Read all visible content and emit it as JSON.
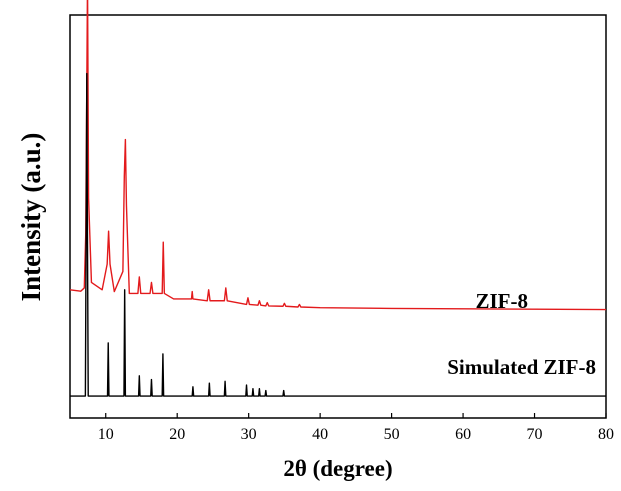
{
  "chart_data": {
    "type": "line",
    "xlabel": "2θ (degree)",
    "ylabel": "Intensity (a.u.)",
    "xlim": [
      5,
      80
    ],
    "xticks": [
      10,
      20,
      30,
      40,
      50,
      60,
      70,
      80
    ],
    "ytick_labels": false,
    "grid": false,
    "legend": "none",
    "series": [
      {
        "name": "ZIF-8",
        "color": "#e31a1c",
        "baseline": 14,
        "x": [
          5,
          6.5,
          7.0,
          7.2,
          7.35,
          7.45,
          7.6,
          8.0,
          9.5,
          10.2,
          10.4,
          10.6,
          11.2,
          12.4,
          12.6,
          12.75,
          12.9,
          13.3,
          14.5,
          14.7,
          14.9,
          16.2,
          16.4,
          16.6,
          17.9,
          18.05,
          18.2,
          19.5,
          22.0,
          22.1,
          22.2,
          24.2,
          24.4,
          24.6,
          26.6,
          26.8,
          27.0,
          29.7,
          29.9,
          30.1,
          31.3,
          31.5,
          31.7,
          32.4,
          32.6,
          32.8,
          34.8,
          35.0,
          35.2,
          36.9,
          37.1,
          37.3,
          40,
          50,
          60,
          70,
          80
        ],
        "y": [
          15,
          14.6,
          15.5,
          30,
          70,
          100,
          40,
          17,
          15,
          22,
          31,
          22,
          14.5,
          20,
          46,
          56,
          38,
          14,
          14,
          18.5,
          14,
          14,
          17,
          14,
          14,
          28,
          14,
          12.5,
          12.5,
          14.5,
          12.5,
          12,
          15,
          12,
          12,
          15.5,
          12,
          11,
          12.8,
          11,
          10.8,
          12,
          10.8,
          10.6,
          11.5,
          10.6,
          10.5,
          11.3,
          10.5,
          10.3,
          11,
          10.3,
          10.1,
          9.9,
          9.8,
          9.7,
          9.6
        ]
      },
      {
        "name": "Simulated ZIF-8",
        "color": "#000000",
        "baseline": 0,
        "x": [
          5,
          7.15,
          7.25,
          7.35,
          7.45,
          7.55,
          10.25,
          10.35,
          10.45,
          12.55,
          12.65,
          12.75,
          14.6,
          14.7,
          14.8,
          16.3,
          16.4,
          16.5,
          17.9,
          18.0,
          18.1,
          22.1,
          22.2,
          22.3,
          24.4,
          24.5,
          24.6,
          26.6,
          26.7,
          26.8,
          29.6,
          29.7,
          29.8,
          30.5,
          30.6,
          30.7,
          31.4,
          31.5,
          31.6,
          32.3,
          32.4,
          32.5,
          34.8,
          34.9,
          35.0,
          80
        ],
        "y": [
          0,
          0,
          41,
          88,
          41,
          0,
          0,
          14.5,
          0,
          0,
          29,
          0,
          0,
          5.5,
          0,
          0,
          4.5,
          0,
          0,
          11.5,
          0,
          0,
          2.5,
          0,
          0,
          3.5,
          0,
          0,
          4,
          0,
          0,
          3,
          0,
          0,
          2,
          0,
          0,
          2,
          0,
          0,
          1.5,
          0,
          0,
          1.5,
          0,
          0
        ]
      }
    ]
  },
  "labels": {
    "zif8": "ZIF-8",
    "simulated": "Simulated ZIF-8"
  }
}
